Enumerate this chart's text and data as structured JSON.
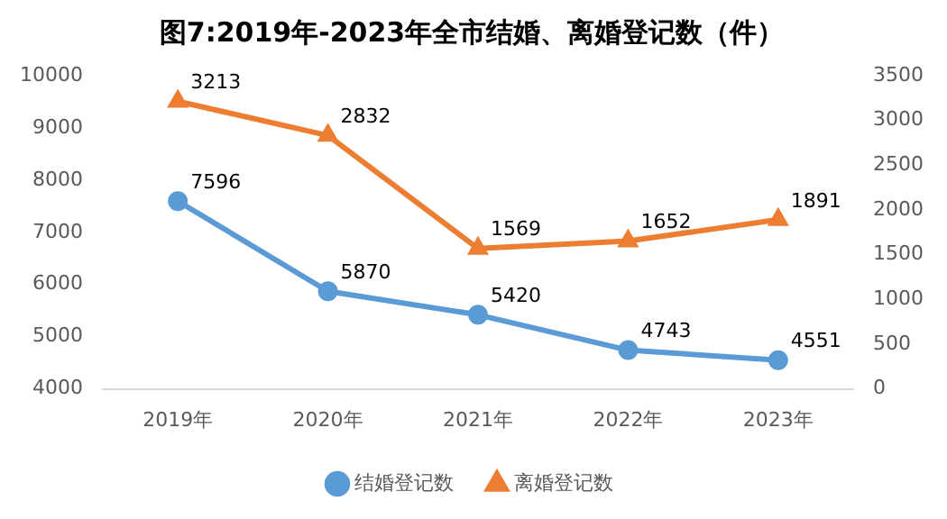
{
  "chart_data": {
    "type": "line",
    "title": "图7:2019年-2023年全市结婚、离婚登记数（件）",
    "categories": [
      "2019年",
      "2020年",
      "2021年",
      "2022年",
      "2023年"
    ],
    "series": [
      {
        "name": "结婚登记数",
        "color": "#5b9bd5",
        "values": [
          7596,
          5870,
          5420,
          4743,
          4551
        ],
        "marker": "circle"
      },
      {
        "name": "离婚登记数",
        "color": "#ed7d31",
        "values": [
          3213,
          2832,
          1569,
          1652,
          1891
        ],
        "marker": "triangle",
        "axis": "y2"
      }
    ],
    "ylim": [
      4000,
      10000
    ],
    "yticks": [
      4000,
      5000,
      6000,
      7000,
      8000,
      9000,
      10000
    ],
    "y2lim": [
      0,
      3500
    ],
    "y2ticks": [
      0,
      500,
      1000,
      1500,
      2000,
      2500,
      3000,
      3500
    ],
    "data_labels": true,
    "legend": "bottom",
    "grid": false,
    "line_style": "solid"
  }
}
